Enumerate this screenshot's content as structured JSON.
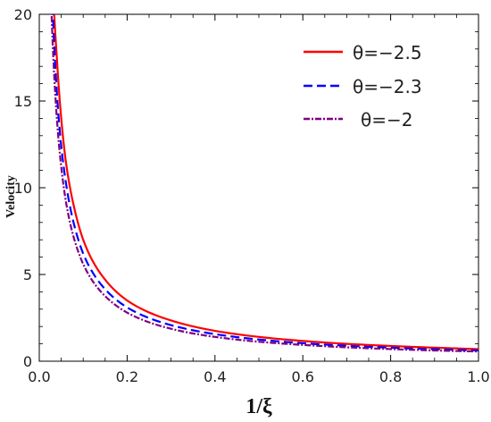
{
  "chart_data": {
    "type": "line",
    "title": "",
    "xlabel": "1/ξ",
    "ylabel": "Velocity",
    "xlim": [
      0.0,
      1.0
    ],
    "ylim": [
      0,
      20
    ],
    "xticks": [
      0.0,
      0.2,
      0.4,
      0.6,
      0.8,
      1.0
    ],
    "xtick_labels": [
      "0.0",
      "0.2",
      "0.4",
      "0.6",
      "0.8",
      "1.0"
    ],
    "yticks": [
      0,
      5,
      10,
      15,
      20
    ],
    "ytick_labels": [
      "0",
      "5",
      "10",
      "15",
      "20"
    ],
    "grid": false,
    "legend_position": "top-right",
    "x_range": [
      0.02,
      1.0
    ],
    "series": [
      {
        "name": "θ=−2.5",
        "color": "#ff0000",
        "style": "solid",
        "x": [
          0.034,
          0.04,
          0.05,
          0.06,
          0.08,
          0.1,
          0.15,
          0.2,
          0.3,
          0.4,
          0.5,
          0.6,
          0.7,
          0.8,
          0.9,
          1.0
        ],
        "y": [
          20.0,
          17.5,
          14.0,
          11.6,
          8.8,
          7.0,
          4.7,
          3.5,
          2.35,
          1.75,
          1.4,
          1.17,
          1.0,
          0.88,
          0.78,
          0.7
        ]
      },
      {
        "name": "θ=−2.3",
        "color": "#0000ff",
        "style": "dashed",
        "x": [
          0.031,
          0.04,
          0.05,
          0.06,
          0.08,
          0.1,
          0.15,
          0.2,
          0.3,
          0.4,
          0.5,
          0.6,
          0.7,
          0.8,
          0.9,
          1.0
        ],
        "y": [
          20.0,
          15.5,
          12.4,
          10.4,
          7.8,
          6.2,
          4.15,
          3.1,
          2.08,
          1.56,
          1.25,
          1.04,
          0.89,
          0.78,
          0.69,
          0.62
        ]
      },
      {
        "name": "θ=−2",
        "color": "#800080",
        "style": "dashdot",
        "x": [
          0.028,
          0.04,
          0.05,
          0.06,
          0.08,
          0.1,
          0.15,
          0.2,
          0.3,
          0.4,
          0.5,
          0.6,
          0.7,
          0.8,
          0.9,
          1.0
        ],
        "y": [
          20.0,
          14.0,
          11.2,
          9.3,
          7.0,
          5.6,
          3.75,
          2.8,
          1.87,
          1.4,
          1.12,
          0.94,
          0.8,
          0.7,
          0.62,
          0.56
        ]
      }
    ],
    "legend": [
      {
        "label": "θ=−2.5"
      },
      {
        "label": "θ=−2.3"
      },
      {
        "label": "θ=−2"
      }
    ]
  }
}
